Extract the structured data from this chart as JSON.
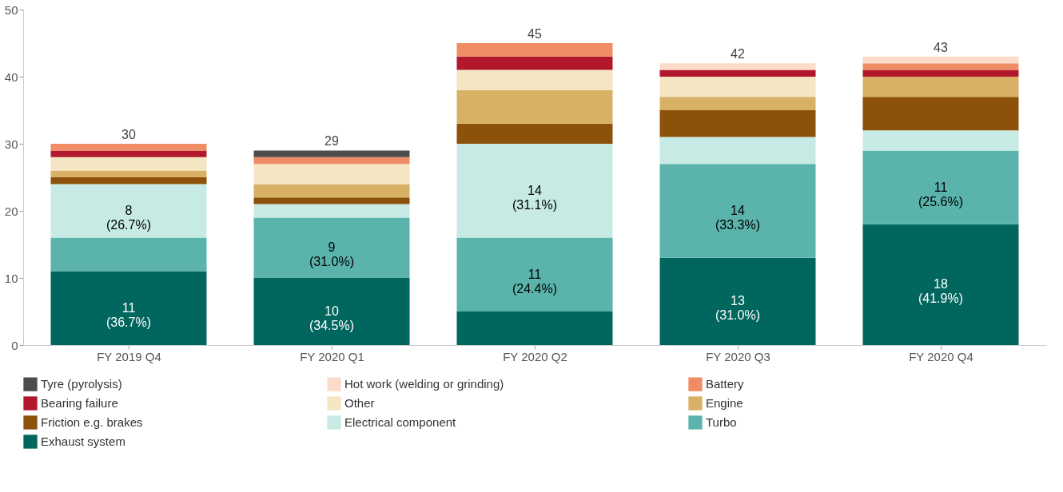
{
  "chart_data": {
    "type": "bar",
    "stacked": true,
    "categories": [
      "FY 2019 Q4",
      "FY 2020 Q1",
      "FY 2020 Q2",
      "FY 2020 Q3",
      "FY 2020 Q4"
    ],
    "ylim": [
      0,
      50
    ],
    "yticks": [
      0,
      10,
      20,
      30,
      40,
      50
    ],
    "grid": false,
    "legend": "bottom",
    "totals": [
      "30",
      "29",
      "45",
      "42",
      "43"
    ],
    "series": [
      {
        "name": "Exhaust system",
        "color": "#01665e",
        "values": [
          11,
          10,
          5,
          13,
          18
        ],
        "value_labels": [
          "11\n(36.7%)",
          "10\n(34.5%)",
          null,
          "13\n(31.0%)",
          "18\n(41.9%)"
        ]
      },
      {
        "name": "Turbo",
        "color": "#5ab4ac",
        "values": [
          5,
          9,
          11,
          14,
          11
        ],
        "value_labels": [
          null,
          "9\n(31.0%)",
          "11\n(24.4%)",
          "14\n(33.3%)",
          "11\n(25.6%)"
        ]
      },
      {
        "name": "Electrical component",
        "color": "#c7ebe4",
        "values": [
          8,
          2,
          14,
          4,
          3
        ],
        "value_labels": [
          "8\n(26.7%)",
          null,
          "14\n(31.1%)",
          null,
          null
        ]
      },
      {
        "name": "Friction e.g. brakes",
        "color": "#8c510a",
        "values": [
          1,
          1,
          3,
          4,
          5
        ]
      },
      {
        "name": "Engine",
        "color": "#d9b166",
        "values": [
          1,
          2,
          5,
          2,
          3
        ]
      },
      {
        "name": "Other",
        "color": "#f5e6c3",
        "values": [
          2,
          3,
          3,
          3,
          0
        ]
      },
      {
        "name": "Bearing failure",
        "color": "#b2182b",
        "values": [
          1,
          0,
          2,
          1,
          1
        ]
      },
      {
        "name": "Battery",
        "color": "#f08c64",
        "values": [
          1,
          1,
          2,
          0,
          1
        ]
      },
      {
        "name": "Hot work (welding or grinding)",
        "color": "#fcdcc8",
        "values": [
          0,
          0,
          0,
          1,
          1
        ]
      },
      {
        "name": "Tyre (pyrolysis)",
        "color": "#4d4d4d",
        "values": [
          0,
          1,
          0,
          0,
          0
        ]
      }
    ]
  }
}
